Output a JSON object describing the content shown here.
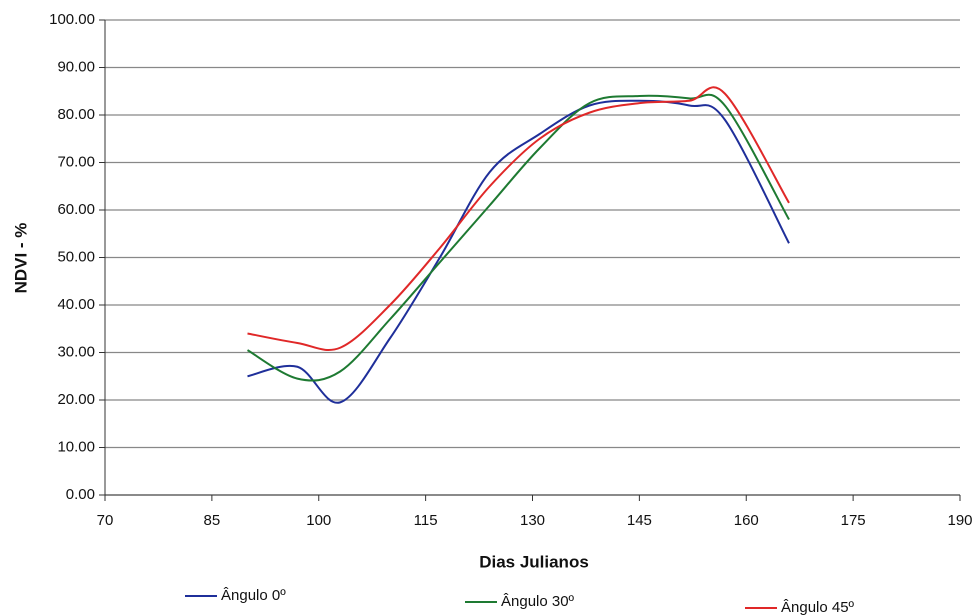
{
  "chart_data": {
    "type": "line",
    "x_label": "Dias Julianos",
    "y_label": "NDVI - %",
    "x": [
      90,
      97,
      103,
      110,
      117,
      124,
      131,
      138,
      145,
      152,
      157,
      166
    ],
    "series": [
      {
        "name": "Ângulo 0º",
        "color": "#1f2f9a",
        "values": [
          25,
          27,
          19.5,
          33,
          50,
          68,
          76,
          82,
          83,
          82,
          79,
          53
        ]
      },
      {
        "name": "Ângulo 30º",
        "color": "#1e7a32",
        "values": [
          30.5,
          24.5,
          26,
          37,
          49,
          61,
          73,
          82.5,
          84,
          83.5,
          82,
          58
        ]
      },
      {
        "name": "Ângulo 45º",
        "color": "#e02828",
        "values": [
          34,
          32,
          31,
          40,
          52,
          65,
          75,
          80.5,
          82.5,
          83,
          84.5,
          61.5
        ]
      }
    ],
    "xlim": [
      70,
      190
    ],
    "xticks": [
      70,
      85,
      100,
      115,
      130,
      145,
      160,
      175,
      190
    ],
    "ylim": [
      0,
      100
    ],
    "yticks": [
      {
        "value": 0,
        "label": "0.00"
      },
      {
        "value": 10,
        "label": "10.00"
      },
      {
        "value": 20,
        "label": "20.00"
      },
      {
        "value": 30,
        "label": "30.00"
      },
      {
        "value": 40,
        "label": "40.00"
      },
      {
        "value": 50,
        "label": "50.00"
      },
      {
        "value": 60,
        "label": "60.00"
      },
      {
        "value": 70,
        "label": "70.00"
      },
      {
        "value": 80,
        "label": "80.00"
      },
      {
        "value": 90,
        "label": "90.00"
      },
      {
        "value": 100,
        "label": "100.00"
      }
    ],
    "grid": true,
    "smooth": true,
    "legend": "bottom"
  }
}
